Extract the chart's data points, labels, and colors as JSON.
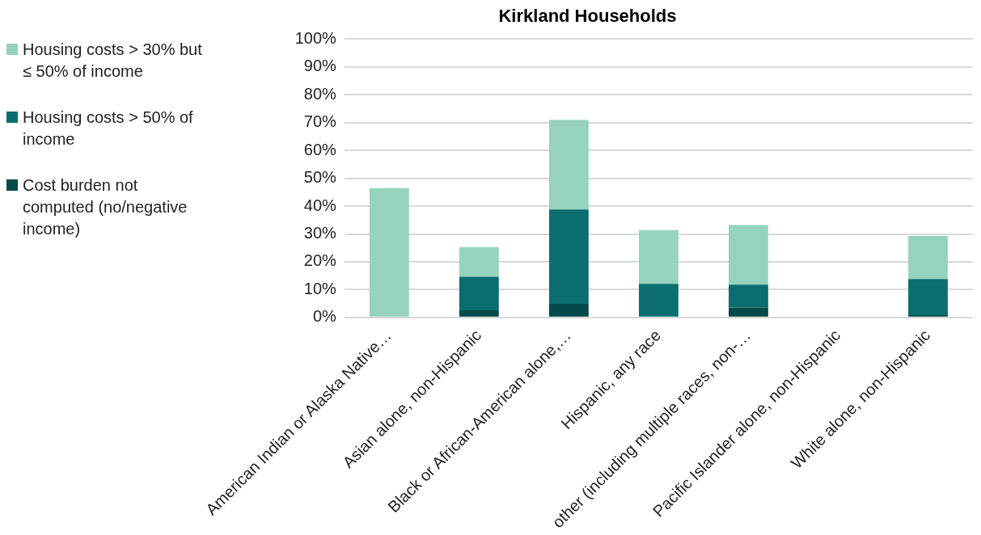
{
  "chart_data": {
    "type": "bar",
    "title": "Kirkland Households",
    "stacked": true,
    "legend": "left",
    "grid": "y",
    "categories": [
      "American Indian or Alaska Native…",
      "Asian alone, non-Hispanic",
      "Black or African-American alone,…",
      "Hispanic, any race",
      "other (including multiple races, non-…",
      "Pacific Islander alone, non-Hispanic",
      "White alone, non-Hispanic"
    ],
    "series": [
      {
        "name": "Cost burden not computed (no/negative income)",
        "color": "#044a4a",
        "values": [
          0,
          2.6,
          4.9,
          0,
          3.6,
          0,
          0.8
        ]
      },
      {
        "name": "Housing costs > 50% of income",
        "color": "#0a6e70",
        "values": [
          0,
          12.0,
          33.9,
          12.1,
          8.2,
          0,
          13.0
        ]
      },
      {
        "name": "Housing costs > 30% but ≤ 50% of income",
        "color": "#96d3bd",
        "values": [
          46.5,
          10.7,
          32.2,
          19.3,
          21.4,
          0,
          15.5
        ]
      }
    ],
    "ylim": [
      0,
      100
    ],
    "yticks": [
      {
        "value": 0,
        "label": "0%"
      },
      {
        "value": 10,
        "label": "10%"
      },
      {
        "value": 20,
        "label": "20%"
      },
      {
        "value": 30,
        "label": "30%"
      },
      {
        "value": 40,
        "label": "40%"
      },
      {
        "value": 50,
        "label": "50%"
      },
      {
        "value": 60,
        "label": "60%"
      },
      {
        "value": 70,
        "label": "70%"
      },
      {
        "value": 80,
        "label": "80%"
      },
      {
        "value": 90,
        "label": "90%"
      },
      {
        "value": 100,
        "label": "100%"
      }
    ]
  }
}
